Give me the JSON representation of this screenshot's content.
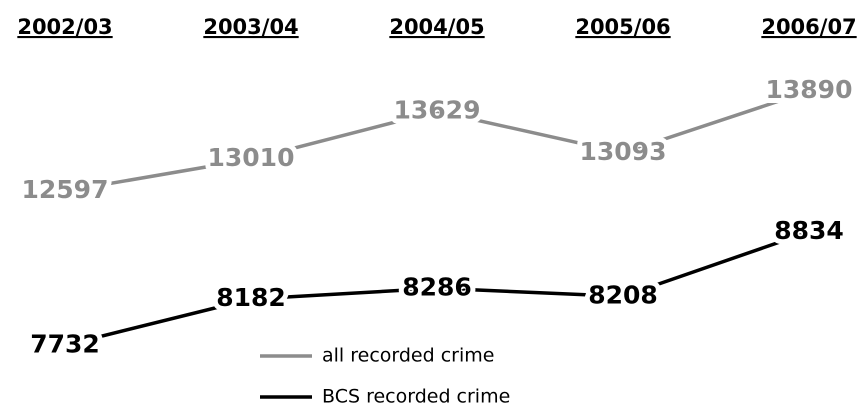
{
  "chart_data": {
    "type": "line",
    "categories": [
      "2002/03",
      "2003/04",
      "2004/05",
      "2005/06",
      "2006/07"
    ],
    "series": [
      {
        "name": "all recorded crime",
        "color": "#8c8c8c",
        "values": [
          12597,
          13010,
          13629,
          13093,
          13890
        ]
      },
      {
        "name": "BCS recorded crime",
        "color": "#000000",
        "values": [
          7732,
          8182,
          8286,
          8208,
          8834
        ],
        "axis": "y2"
      }
    ],
    "ylim": [
      9900,
      14550
    ],
    "y2lim": [
      7200,
      10700
    ]
  }
}
